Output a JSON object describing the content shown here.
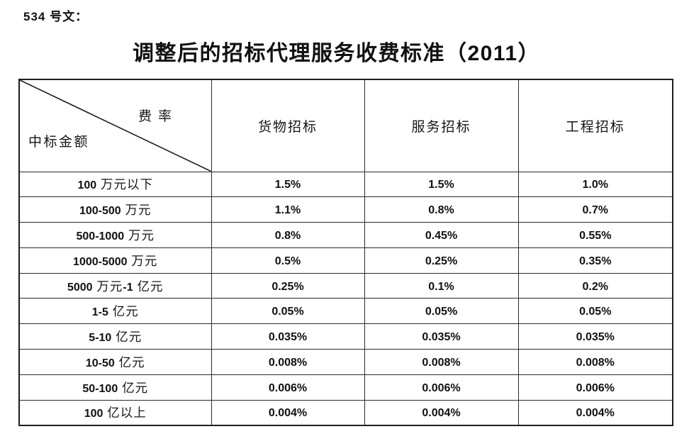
{
  "doc": {
    "number_label": "534 号文："
  },
  "title": "调整后的招标代理服务收费标准（2011）",
  "table": {
    "corner": {
      "top_right": "费率",
      "bottom_left": "中标金额"
    },
    "columns": [
      "货物招标",
      "服务招标",
      "工程招标"
    ],
    "rows": [
      {
        "label": "100 万元以下",
        "values": [
          "1.5%",
          "1.5%",
          "1.0%"
        ]
      },
      {
        "label": "100-500 万元",
        "values": [
          "1.1%",
          "0.8%",
          "0.7%"
        ]
      },
      {
        "label": "500-1000 万元",
        "values": [
          "0.8%",
          "0.45%",
          "0.55%"
        ]
      },
      {
        "label": "1000-5000 万元",
        "values": [
          "0.5%",
          "0.25%",
          "0.35%"
        ]
      },
      {
        "label": "5000 万元-1 亿元",
        "values": [
          "0.25%",
          "0.1%",
          "0.2%"
        ]
      },
      {
        "label": "1-5 亿元",
        "values": [
          "0.05%",
          "0.05%",
          "0.05%"
        ]
      },
      {
        "label": "5-10 亿元",
        "values": [
          "0.035%",
          "0.035%",
          "0.035%"
        ]
      },
      {
        "label": "10-50 亿元",
        "values": [
          "0.008%",
          "0.008%",
          "0.008%"
        ]
      },
      {
        "label": "50-100 亿元",
        "values": [
          "0.006%",
          "0.006%",
          "0.006%"
        ]
      },
      {
        "label": "100 亿以上",
        "values": [
          "0.004%",
          "0.004%",
          "0.004%"
        ]
      }
    ]
  },
  "colors": {
    "background": "#ffffff",
    "text": "#161616",
    "border": "#2a2a2a"
  }
}
